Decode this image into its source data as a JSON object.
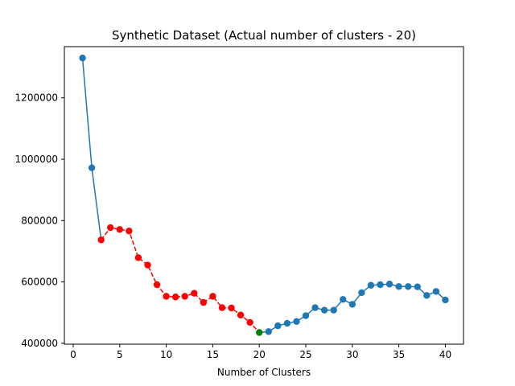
{
  "chart_data": {
    "type": "line",
    "title": "Synthetic Dataset (Actual number of clusters - 20)",
    "xlabel": "Number of Clusters",
    "ylabel": "",
    "xlim": [
      -0.95,
      41.95
    ],
    "ylim": [
      397000,
      1367000
    ],
    "xticks": [
      0,
      5,
      10,
      15,
      20,
      25,
      30,
      35,
      40
    ],
    "xtick_labels": [
      "0",
      "5",
      "10",
      "15",
      "20",
      "25",
      "30",
      "35",
      "40"
    ],
    "yticks": [
      400000,
      600000,
      800000,
      1000000,
      1200000
    ],
    "ytick_labels": [
      "400000",
      "600000",
      "800000",
      "1000000",
      "1200000"
    ],
    "grid": false,
    "legend": null,
    "x": [
      1,
      2,
      3,
      4,
      5,
      6,
      7,
      8,
      9,
      10,
      11,
      12,
      13,
      14,
      15,
      16,
      17,
      18,
      19,
      20,
      21,
      22,
      23,
      24,
      25,
      26,
      27,
      28,
      29,
      30,
      31,
      32,
      33,
      34,
      35,
      36,
      37,
      38,
      39,
      40
    ],
    "values": [
      1330000,
      972000,
      737000,
      777000,
      771000,
      766000,
      679000,
      655000,
      591000,
      553000,
      551000,
      553000,
      563000,
      533000,
      553000,
      516000,
      515000,
      492000,
      468000,
      435000,
      438000,
      457000,
      465000,
      471000,
      490000,
      516000,
      508000,
      508000,
      543000,
      527000,
      565000,
      589000,
      591000,
      593000,
      585000,
      585000,
      584000,
      556000,
      569000,
      541000
    ],
    "series": [
      {
        "style": "solid",
        "color": "#1f77b4",
        "from_x": 1,
        "to_x": 3
      },
      {
        "style": "dashed",
        "color": "#ff0000",
        "from_x": 3,
        "to_x": 20
      },
      {
        "style": "solid",
        "color": "#1f77b4",
        "from_x": 20,
        "to_x": 40
      }
    ],
    "point_colors": {
      "default": "#1f77b4",
      "highlight_range": {
        "from_x": 3,
        "to_x": 19,
        "color": "#ff0000"
      },
      "optimum": {
        "x": 20,
        "color": "#008000"
      }
    }
  }
}
